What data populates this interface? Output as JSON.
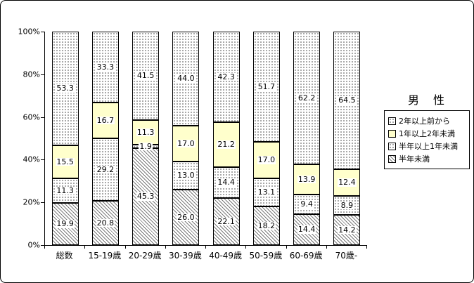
{
  "chart_data": {
    "type": "bar",
    "variant": "stacked-percent",
    "legend_title": "男　性",
    "categories": [
      "総数",
      "15-19歳",
      "20-29歳",
      "30-39歳",
      "40-49歳",
      "50-59歳",
      "60-69歳",
      "70歳-"
    ],
    "series": [
      {
        "name": "半年未満",
        "pattern": "hatch",
        "values": [
          19.9,
          20.8,
          45.3,
          26.0,
          22.1,
          18.2,
          14.4,
          14.2
        ]
      },
      {
        "name": "半年以上1年未満",
        "pattern": "dots",
        "values": [
          11.3,
          29.2,
          1.9,
          13.0,
          14.4,
          13.1,
          9.4,
          8.9
        ]
      },
      {
        "name": "1年以上2年未満",
        "pattern": "solid",
        "color": "#FFFFCC",
        "values": [
          15.5,
          16.7,
          11.3,
          17.0,
          21.2,
          17.0,
          13.9,
          12.4
        ]
      },
      {
        "name": "2年以上前から",
        "pattern": "dots",
        "values": [
          53.3,
          33.3,
          41.5,
          44.0,
          42.3,
          51.7,
          62.2,
          64.5
        ]
      }
    ],
    "legend_order": [
      "2年以上前から",
      "1年以上2年未満",
      "半年以上1年未満",
      "半年未満"
    ],
    "y_ticks": [
      "0%",
      "20%",
      "40%",
      "60%",
      "80%",
      "100%"
    ],
    "ylim": [
      0,
      100
    ],
    "grid": false,
    "legend_position": "right"
  }
}
